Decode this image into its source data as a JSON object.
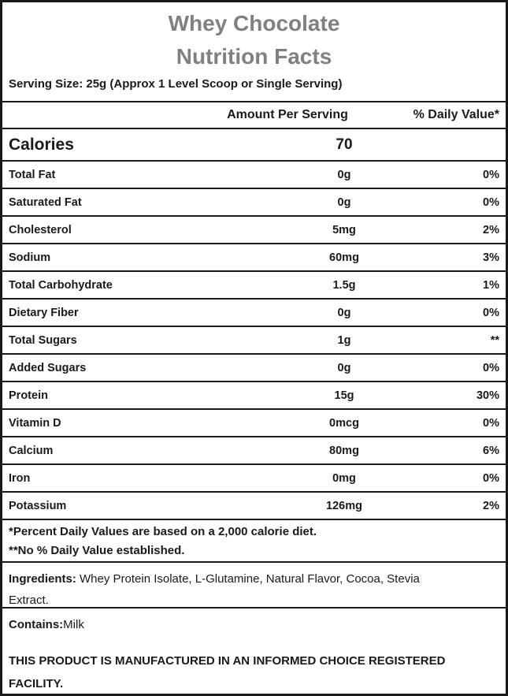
{
  "header": {
    "product_title": "Whey Chocolate",
    "facts_title": "Nutrition Facts",
    "serving_size": "Serving Size: 25g (Approx 1 Level Scoop or Single Serving)"
  },
  "columns": {
    "amount": "Amount Per Serving",
    "daily_value": "% Daily Value*"
  },
  "calories": {
    "label": "Calories",
    "amount": "70",
    "dv": ""
  },
  "rows": [
    {
      "label": "Total Fat",
      "amount": "0g",
      "dv": "0%"
    },
    {
      "label": "Saturated Fat",
      "amount": "0g",
      "dv": "0%"
    },
    {
      "label": "Cholesterol",
      "amount": "5mg",
      "dv": "2%"
    },
    {
      "label": "Sodium",
      "amount": "60mg",
      "dv": "3%"
    },
    {
      "label": "Total Carbohydrate",
      "amount": "1.5g",
      "dv": "1%"
    },
    {
      "label": "Dietary Fiber",
      "amount": "0g",
      "dv": "0%"
    },
    {
      "label": "Total Sugars",
      "amount": "1g",
      "dv": "**"
    },
    {
      "label": "Added Sugars",
      "amount": "0g",
      "dv": "0%"
    },
    {
      "label": "Protein",
      "amount": "15g",
      "dv": "30%"
    },
    {
      "label": "Vitamin D",
      "amount": "0mcg",
      "dv": "0%"
    },
    {
      "label": "Calcium",
      "amount": "80mg",
      "dv": "6%"
    },
    {
      "label": "Iron",
      "amount": "0mg",
      "dv": "0%"
    },
    {
      "label": "Potassium",
      "amount": "126mg",
      "dv": "2%"
    }
  ],
  "footnotes": {
    "line1": "*Percent Daily Values are based on a 2,000 calorie diet.",
    "line2": "**No % Daily Value established."
  },
  "ingredients": {
    "label": "Ingredients:",
    "text": " Whey Protein Isolate, L-Glutamine, Natural Flavor, Cocoa, Stevia\nExtract."
  },
  "contains": {
    "label": "Contains:",
    "text": "Milk"
  },
  "facility": "THIS PRODUCT IS MANUFACTURED IN AN INFORMED CHOICE REGISTERED\nFACILITY.",
  "colors": {
    "title_gray": "#808080",
    "text": "#1a1a1a",
    "border": "#1a1a1a"
  }
}
